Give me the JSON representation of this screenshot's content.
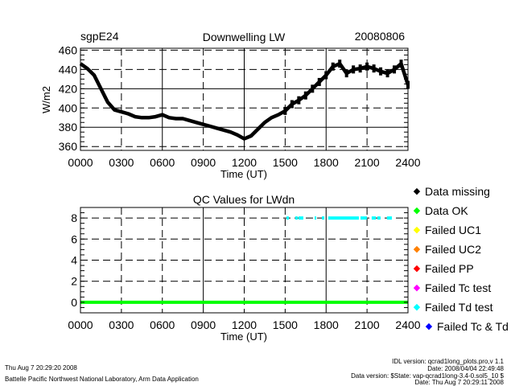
{
  "chart_data": [
    {
      "type": "scatter",
      "title": "Downwelling LW",
      "site_label": "sgpE24",
      "date_label": "20080806",
      "xlabel": "Time (UT)",
      "ylabel": "W/m2",
      "xlim": [
        0,
        24
      ],
      "ylim": [
        356,
        462
      ],
      "x_ticks": [
        "0000",
        "0300",
        "0600",
        "0900",
        "1200",
        "1500",
        "1800",
        "2100",
        "2400"
      ],
      "y_ticks": [
        360,
        380,
        400,
        420,
        440,
        460
      ],
      "grid": true,
      "color": "#000000",
      "x": [
        0,
        0.5,
        1,
        1.5,
        2,
        2.5,
        3,
        3.5,
        4,
        4.5,
        5,
        5.5,
        6,
        6.5,
        7,
        7.5,
        8,
        8.5,
        9,
        9.5,
        10,
        10.5,
        11,
        11.5,
        12,
        12.5,
        13,
        13.5,
        14,
        14.5,
        15,
        15.5,
        16,
        16.5,
        17,
        17.5,
        18,
        18.5,
        19,
        19.5,
        20,
        20.5,
        21,
        21.5,
        22,
        22.5,
        23,
        23.5,
        24
      ],
      "y": [
        446,
        441,
        434,
        420,
        406,
        398,
        396,
        394,
        391,
        390,
        390,
        391,
        393,
        390,
        389,
        389,
        387,
        385,
        383,
        381,
        379,
        377,
        375,
        372,
        368,
        371,
        378,
        385,
        390,
        393,
        397,
        404,
        408,
        413,
        420,
        427,
        434,
        443,
        446,
        436,
        440,
        441,
        443,
        441,
        438,
        436,
        440,
        446,
        424
      ]
    },
    {
      "type": "scatter",
      "title": "QC Values for LWdn",
      "xlabel": "Time (UT)",
      "xlim": [
        0,
        24
      ],
      "ylim": [
        -1,
        9
      ],
      "x_ticks": [
        "0000",
        "0300",
        "0600",
        "0900",
        "1200",
        "1500",
        "1800",
        "2100",
        "2400"
      ],
      "y_ticks": [
        0,
        2,
        4,
        6,
        8
      ],
      "grid": true,
      "series": [
        {
          "name": "Data OK",
          "value": 0,
          "color": "#00ff00",
          "ranges": [
            [
              0,
              24
            ]
          ]
        },
        {
          "name": "Failed Td test",
          "value": 8,
          "color": "#00ffff",
          "ranges": [
            [
              15.1,
              15.27
            ],
            [
              15.74,
              15.92
            ],
            [
              15.98,
              16.33
            ],
            [
              17.16,
              17.28
            ],
            [
              17.69,
              17.87
            ],
            [
              18.16,
              20.4
            ],
            [
              20.52,
              20.99
            ],
            [
              21.34,
              21.64
            ],
            [
              21.76,
              21.99
            ],
            [
              22.46,
              22.82
            ]
          ]
        }
      ],
      "legend_placement": "right",
      "legend": [
        {
          "label": "Data missing",
          "color": "#000000"
        },
        {
          "label": "Data OK",
          "color": "#00ff00"
        },
        {
          "label": "Failed UC1",
          "color": "#ffff00"
        },
        {
          "label": "Failed UC2",
          "color": "#ff8000"
        },
        {
          "label": "Failed PP",
          "color": "#ff0000"
        },
        {
          "label": "Failed Tc test",
          "color": "#ff00ff"
        },
        {
          "label": "Failed Td test",
          "color": "#00ffff"
        },
        {
          "label": "Failed Tc & Td",
          "color": "#0000ff"
        }
      ]
    }
  ],
  "footer": {
    "run_date": "Thu Aug  7 20:29:20 2008",
    "org": "Battelle Pacific Northwest National Laboratory, Arm Data Application",
    "idl_version": "IDL version: qcrad1long_plots.pro,v 1.1",
    "idl_date": "Date: 2008/04/04 22:49:48",
    "data_version": "Data version: $State: vap-qcrad1long-3.4-0.sol5_10 $",
    "data_date": "Date: Thu Aug  7 20:29:11 2008"
  }
}
